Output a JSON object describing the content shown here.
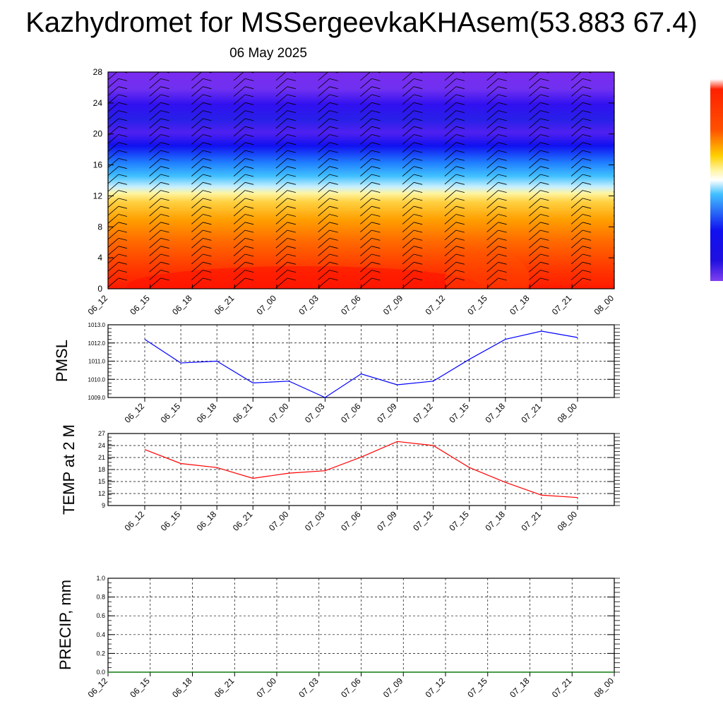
{
  "header": {
    "title": "Kazhydromet for MSSergeevkaKHAsem(53.883 67.4)",
    "date": "06 May 2025"
  },
  "chart_data": [
    {
      "type": "heatmap",
      "title": "",
      "x_tick_labels": [
        "06_12",
        "06_15",
        "06_18",
        "06_21",
        "07_00",
        "07_03",
        "07_06",
        "07_09",
        "07_12",
        "07_15",
        "07_18",
        "07_21",
        "08_00"
      ],
      "y_ticks": [
        0,
        4,
        8,
        12,
        16,
        20,
        24,
        28
      ],
      "ylim": [
        0,
        28
      ],
      "colorbar": "warm-to-cold (red at bottom levels, blue/violet at top levels)",
      "overlay": "wind barbs",
      "colors": {
        "low": "#ff2000",
        "mid_low": "#ff9a00",
        "mid": "#fff090",
        "mid_high": "#40a0ff",
        "high": "#2010f0",
        "top": "#7a2cf0"
      }
    },
    {
      "type": "line",
      "ylabel": "PMSL",
      "x": [
        "06_12",
        "06_15",
        "06_18",
        "06_21",
        "07_00",
        "07_03",
        "07_06",
        "07_09",
        "07_12",
        "07_15",
        "07_18",
        "07_21",
        "08_00"
      ],
      "y_ticks": [
        "1009.0",
        "1010.0",
        "1011.0",
        "1012.0",
        "1013.0"
      ],
      "ylim": [
        1009.0,
        1013.0
      ],
      "series": [
        {
          "values": [
            1012.2,
            1010.9,
            1011.0,
            1009.8,
            1009.9,
            1009.0,
            1010.3,
            1009.7,
            1009.9,
            1011.1,
            1012.2,
            1012.65,
            1012.3
          ],
          "color": "#0000ff"
        }
      ],
      "grid": true
    },
    {
      "type": "line",
      "ylabel": "TEMP at 2 M",
      "x": [
        "06_12",
        "06_15",
        "06_18",
        "06_21",
        "07_00",
        "07_03",
        "07_06",
        "07_09",
        "07_12",
        "07_15",
        "07_18",
        "07_21",
        "08_00"
      ],
      "y_ticks": [
        "9",
        "12",
        "15",
        "18",
        "21",
        "24",
        "27"
      ],
      "ylim": [
        9,
        27
      ],
      "series": [
        {
          "values": [
            23.0,
            19.5,
            18.5,
            15.8,
            17.1,
            17.7,
            21.1,
            25.0,
            24.0,
            18.5,
            14.8,
            11.6,
            11.0
          ],
          "color": "#ff0000"
        }
      ],
      "grid": true
    },
    {
      "type": "line",
      "ylabel": "PRECIP, mm",
      "x": [
        "06_12",
        "06_15",
        "06_18",
        "06_21",
        "07_00",
        "07_03",
        "07_06",
        "07_09",
        "07_12",
        "07_15",
        "07_18",
        "07_21",
        "08_00"
      ],
      "y_ticks": [
        "0.0",
        "0.2",
        "0.4",
        "0.6",
        "0.8",
        "1.0"
      ],
      "ylim": [
        0.0,
        1.0
      ],
      "series": [
        {
          "values": [
            0,
            0,
            0,
            0,
            0,
            0,
            0,
            0,
            0,
            0,
            0,
            0,
            0
          ],
          "color": "#008000"
        }
      ],
      "grid": true
    }
  ]
}
